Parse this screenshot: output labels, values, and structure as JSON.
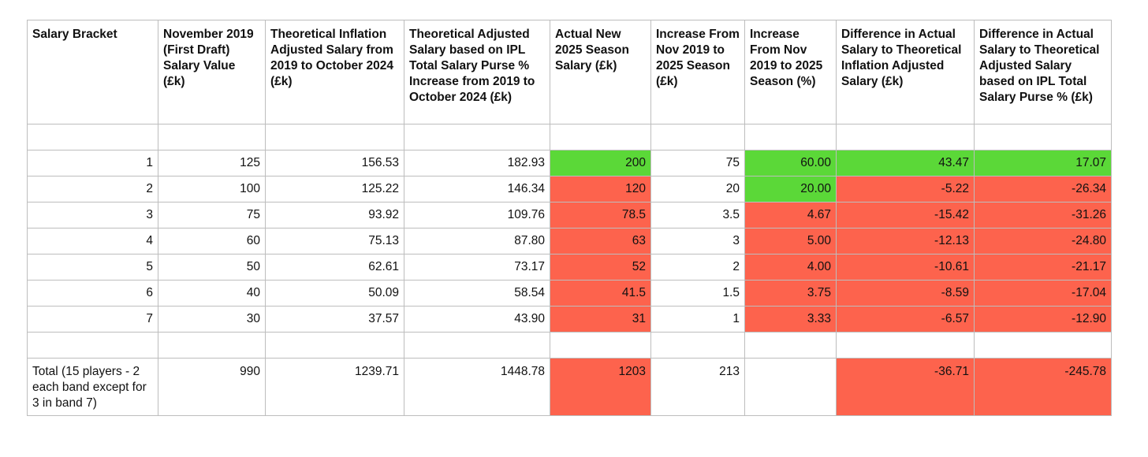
{
  "colors": {
    "good": "#5bd838",
    "bad": "#fd634d",
    "grid": "#bdbdbd"
  },
  "headers": [
    "Salary Bracket",
    "November 2019 (First Draft) Salary Value (£k)",
    "Theoretical Inflation Adjusted Salary from 2019 to October 2024 (£k)",
    "Theoretical Adjusted Salary based on IPL Total Salary Purse % Increase from 2019 to October 2024 (£k)",
    "Actual New 2025 Season Salary (£k)",
    "Increase From Nov 2019 to 2025 Season (£k)",
    "Increase From Nov 2019 to 2025 Season (%)",
    "Difference in Actual Salary to Theoretical Inflation Adjusted Salary (£k)",
    "Difference in Actual Salary to Theoretical Adjusted Salary based on IPL Total Salary Purse % (£k)"
  ],
  "rows": [
    {
      "cells": [
        "1",
        "125",
        "156.53",
        "182.93",
        "200",
        "75",
        "60.00",
        "43.47",
        "17.07"
      ],
      "status": [
        "",
        "",
        "",
        "",
        "good",
        "",
        "good",
        "good",
        "good"
      ]
    },
    {
      "cells": [
        "2",
        "100",
        "125.22",
        "146.34",
        "120",
        "20",
        "20.00",
        "-5.22",
        "-26.34"
      ],
      "status": [
        "",
        "",
        "",
        "",
        "bad",
        "",
        "good",
        "bad",
        "bad"
      ]
    },
    {
      "cells": [
        "3",
        "75",
        "93.92",
        "109.76",
        "78.5",
        "3.5",
        "4.67",
        "-15.42",
        "-31.26"
      ],
      "status": [
        "",
        "",
        "",
        "",
        "bad",
        "",
        "bad",
        "bad",
        "bad"
      ]
    },
    {
      "cells": [
        "4",
        "60",
        "75.13",
        "87.80",
        "63",
        "3",
        "5.00",
        "-12.13",
        "-24.80"
      ],
      "status": [
        "",
        "",
        "",
        "",
        "bad",
        "",
        "bad",
        "bad",
        "bad"
      ]
    },
    {
      "cells": [
        "5",
        "50",
        "62.61",
        "73.17",
        "52",
        "2",
        "4.00",
        "-10.61",
        "-21.17"
      ],
      "status": [
        "",
        "",
        "",
        "",
        "bad",
        "",
        "bad",
        "bad",
        "bad"
      ]
    },
    {
      "cells": [
        "6",
        "40",
        "50.09",
        "58.54",
        "41.5",
        "1.5",
        "3.75",
        "-8.59",
        "-17.04"
      ],
      "status": [
        "",
        "",
        "",
        "",
        "bad",
        "",
        "bad",
        "bad",
        "bad"
      ]
    },
    {
      "cells": [
        "7",
        "30",
        "37.57",
        "43.90",
        "31",
        "1",
        "3.33",
        "-6.57",
        "-12.90"
      ],
      "status": [
        "",
        "",
        "",
        "",
        "bad",
        "",
        "bad",
        "bad",
        "bad"
      ]
    }
  ],
  "total": {
    "label": "Total (15 players - 2 each band except for 3 in band 7)",
    "cells": [
      "990",
      "1239.71",
      "1448.78",
      "1203",
      "213",
      "",
      "-36.71",
      "-245.78"
    ],
    "status": [
      "",
      "",
      "",
      "bad",
      "",
      "",
      "bad",
      "bad"
    ]
  }
}
